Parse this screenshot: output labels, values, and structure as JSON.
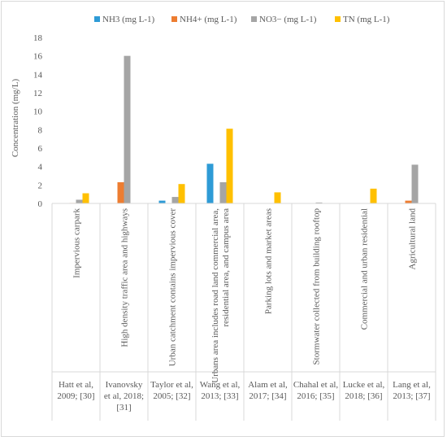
{
  "chart_data": {
    "type": "bar",
    "ylabel": "Concentration (mg/L)",
    "ylim": [
      0,
      18
    ],
    "yticks": [
      0,
      2,
      4,
      6,
      8,
      10,
      12,
      14,
      16,
      18
    ],
    "grid": false,
    "legend_position": "top",
    "categories": [
      "Impervious carpark",
      "High density traffic area and highways",
      "Urban catchment contains impervious cover",
      "Urbans area includes road land commercial area, residential area,  and campus area",
      "Parking lots and market areas",
      "Stormwater collected from building rooftop",
      "Commercial and urban residential",
      "Agricultural land"
    ],
    "category_lines": [
      [
        "Impervious carpark"
      ],
      [
        "High density traffic area and highways"
      ],
      [
        "Urban catchment contains impervious cover"
      ],
      [
        "Urbans area includes road land commercial area,",
        "residential area,  and campus area"
      ],
      [
        "Parking lots and market areas"
      ],
      [
        "Stormwater collected from building rooftop"
      ],
      [
        "Commercial and urban residential"
      ],
      [
        "Agricultural land"
      ]
    ],
    "references": [
      [
        "Hatt et al,",
        "2009; [30]"
      ],
      [
        "Ivanovsky",
        "et al, 2018;",
        "[31]"
      ],
      [
        "Taylor et al,",
        "2005; [32]"
      ],
      [
        "Wang et al,",
        "2013; [33]"
      ],
      [
        "Alam et al,",
        "2017; [34]"
      ],
      [
        "Chahal et al,",
        "2016; [35]"
      ],
      [
        "Lucke et al,",
        "2018; [36]"
      ],
      [
        "Lang et al,",
        "2013; [37]"
      ]
    ],
    "series": [
      {
        "name": "NH3 (mg L-1)",
        "color": "#2e9bd6",
        "values": [
          0,
          0,
          0.3,
          4.3,
          0,
          0,
          0,
          0
        ]
      },
      {
        "name": "NH4+ (mg L-1)",
        "color": "#ed7d31",
        "values": [
          0.05,
          2.3,
          0,
          0,
          0,
          0,
          0,
          0.3
        ]
      },
      {
        "name": "NO3− (mg L-1)",
        "color": "#a5a5a5",
        "values": [
          0.4,
          16,
          0.7,
          2.3,
          0,
          0.1,
          0,
          4.2
        ]
      },
      {
        "name": "TN (mg L-1)",
        "color": "#ffc000",
        "values": [
          1.1,
          0,
          2.1,
          8.1,
          1.2,
          0,
          1.6,
          0
        ]
      }
    ]
  }
}
